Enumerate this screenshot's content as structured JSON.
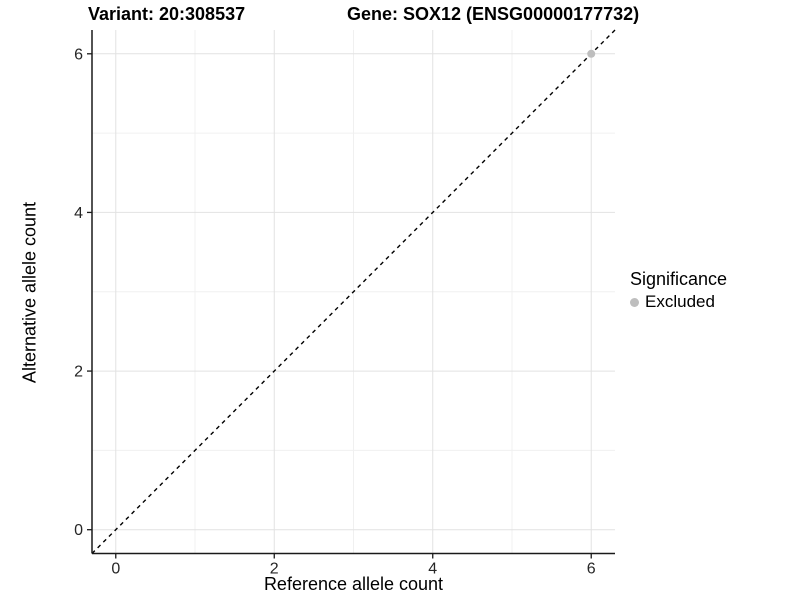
{
  "chart_data": {
    "type": "scatter",
    "title_left": "Variant: 20:308537",
    "title_right": "Gene: SOX12 (ENSG00000177732)",
    "xlabel": "Reference allele count",
    "ylabel": "Alternative allele count",
    "xlim": [
      -0.3,
      6.3
    ],
    "ylim": [
      -0.3,
      6.3
    ],
    "x_major_ticks": [
      0,
      2,
      4,
      6
    ],
    "y_major_ticks": [
      0,
      2,
      4,
      6
    ],
    "x_minor_gridlines": [
      1,
      3,
      5
    ],
    "y_minor_gridlines": [
      1,
      3,
      5
    ],
    "grid": "major+minor",
    "reference_line": {
      "type": "abline",
      "slope": 1,
      "intercept": 0,
      "style": "dashed",
      "color": "#000000"
    },
    "series": [
      {
        "name": "Excluded",
        "color": "#bebebe",
        "points": [
          {
            "x": 6,
            "y": 6
          }
        ]
      }
    ],
    "legend": {
      "title": "Significance",
      "position": "right",
      "items": [
        {
          "label": "Excluded",
          "color": "#bebebe"
        }
      ]
    }
  },
  "colors": {
    "background": "#ffffff",
    "axis_line": "#1a1a1a",
    "tick_label": "#262626",
    "grid_major": "#e2e2e2",
    "grid_minor": "#f0f0f0"
  }
}
